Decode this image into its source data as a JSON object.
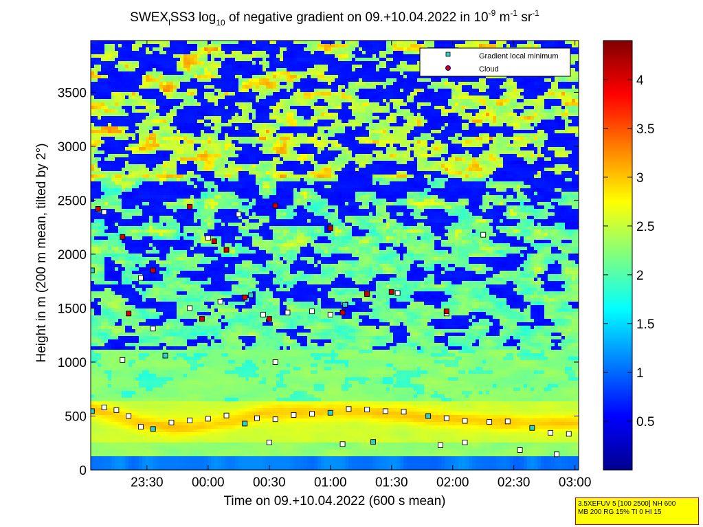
{
  "chart_data": {
    "type": "heatmap",
    "title": {
      "prefix": "SWEX",
      "prefix_sub": "l",
      "part2": "SS3 log",
      "part2_sub": "10",
      "part3": " of negative gradient on 09.+10.04.2022 in 10",
      "unit_exp1": "-9",
      "unit_mid": " m",
      "unit_exp2": "-1",
      "unit_mid2": " sr",
      "unit_exp3": "-1"
    },
    "xlabel": "Time on 09.+10.04.2022 (600 s mean)",
    "ylabel": "Height in m (200 m mean, tilted by 2°)",
    "x_ticks": [
      "23:30",
      "00:00",
      "00:30",
      "01:00",
      "01:30",
      "02:00",
      "02:30",
      "03:00"
    ],
    "x_tick_hours": [
      23.5,
      24.0,
      24.5,
      25.0,
      25.5,
      26.0,
      26.5,
      27.0
    ],
    "xlim": [
      23.04,
      27.03
    ],
    "ylim": [
      0,
      3980
    ],
    "y_ticks": [
      "0",
      "500",
      "1000",
      "1500",
      "2000",
      "2500",
      "3000",
      "3500"
    ],
    "y_tick_values": [
      0,
      500,
      1000,
      1500,
      2000,
      2500,
      3000,
      3500
    ],
    "colorbar": {
      "range": [
        0,
        4.4
      ],
      "ticks": [
        "0.5",
        "1",
        "1.5",
        "2",
        "2.5",
        "3",
        "3.5",
        "4"
      ],
      "tick_values": [
        0.5,
        1,
        1.5,
        2,
        2.5,
        3,
        3.5,
        4
      ],
      "colormap": "jet"
    },
    "legend": {
      "position": "top-right",
      "entries": [
        {
          "label": "Gradient local minimum",
          "marker": "square",
          "color": "#33cccc"
        },
        {
          "label": "Cloud",
          "marker": "circle",
          "color": "#d00000"
        }
      ]
    },
    "series": [
      {
        "name": "Gradient local minimum",
        "values": [
          [
            23.05,
            545
          ],
          [
            23.15,
            580
          ],
          [
            23.25,
            555
          ],
          [
            23.35,
            500
          ],
          [
            23.45,
            400
          ],
          [
            23.55,
            380
          ],
          [
            23.7,
            440
          ],
          [
            23.85,
            460
          ],
          [
            24.0,
            475
          ],
          [
            24.15,
            505
          ],
          [
            24.3,
            430
          ],
          [
            24.4,
            480
          ],
          [
            24.55,
            470
          ],
          [
            24.7,
            510
          ],
          [
            24.85,
            520
          ],
          [
            25.0,
            530
          ],
          [
            25.15,
            565
          ],
          [
            25.3,
            560
          ],
          [
            25.45,
            545
          ],
          [
            25.6,
            540
          ],
          [
            25.8,
            500
          ],
          [
            25.95,
            480
          ],
          [
            26.1,
            455
          ],
          [
            26.3,
            445
          ],
          [
            26.45,
            450
          ],
          [
            26.65,
            390
          ],
          [
            26.8,
            345
          ],
          [
            26.95,
            335
          ],
          [
            24.5,
            255
          ],
          [
            25.1,
            240
          ],
          [
            25.35,
            260
          ],
          [
            25.9,
            230
          ],
          [
            26.1,
            255
          ],
          [
            26.55,
            185
          ],
          [
            26.85,
            145
          ],
          [
            23.05,
            1850
          ],
          [
            23.15,
            2390
          ],
          [
            23.3,
            1020
          ],
          [
            23.45,
            1780
          ],
          [
            23.55,
            1310
          ],
          [
            23.65,
            1060
          ],
          [
            23.85,
            1500
          ],
          [
            24.0,
            2150
          ],
          [
            24.1,
            1560
          ],
          [
            24.25,
            2370
          ],
          [
            24.35,
            1620
          ],
          [
            24.45,
            1440
          ],
          [
            24.65,
            1460
          ],
          [
            24.85,
            1470
          ],
          [
            25.0,
            1440
          ],
          [
            25.12,
            1530
          ],
          [
            25.3,
            1640
          ],
          [
            25.55,
            1640
          ],
          [
            25.95,
            1450
          ],
          [
            26.25,
            2180
          ],
          [
            25.0,
            2250
          ],
          [
            24.55,
            1000
          ]
        ]
      },
      {
        "name": "Cloud",
        "values": [
          [
            23.1,
            2420
          ],
          [
            23.3,
            2160
          ],
          [
            23.35,
            1450
          ],
          [
            23.55,
            1850
          ],
          [
            23.85,
            2440
          ],
          [
            23.95,
            1400
          ],
          [
            24.05,
            2120
          ],
          [
            24.15,
            2040
          ],
          [
            24.3,
            1600
          ],
          [
            24.5,
            1400
          ],
          [
            24.55,
            2450
          ],
          [
            25.0,
            2240
          ],
          [
            25.1,
            1460
          ],
          [
            25.3,
            1630
          ],
          [
            25.5,
            1650
          ],
          [
            25.95,
            1470
          ]
        ]
      }
    ]
  },
  "info_box": {
    "line1": "3.5XEFUV 5 [100 2500] NH 600",
    "line2": "MB 200 RG 15% TI 0 HI 15"
  }
}
